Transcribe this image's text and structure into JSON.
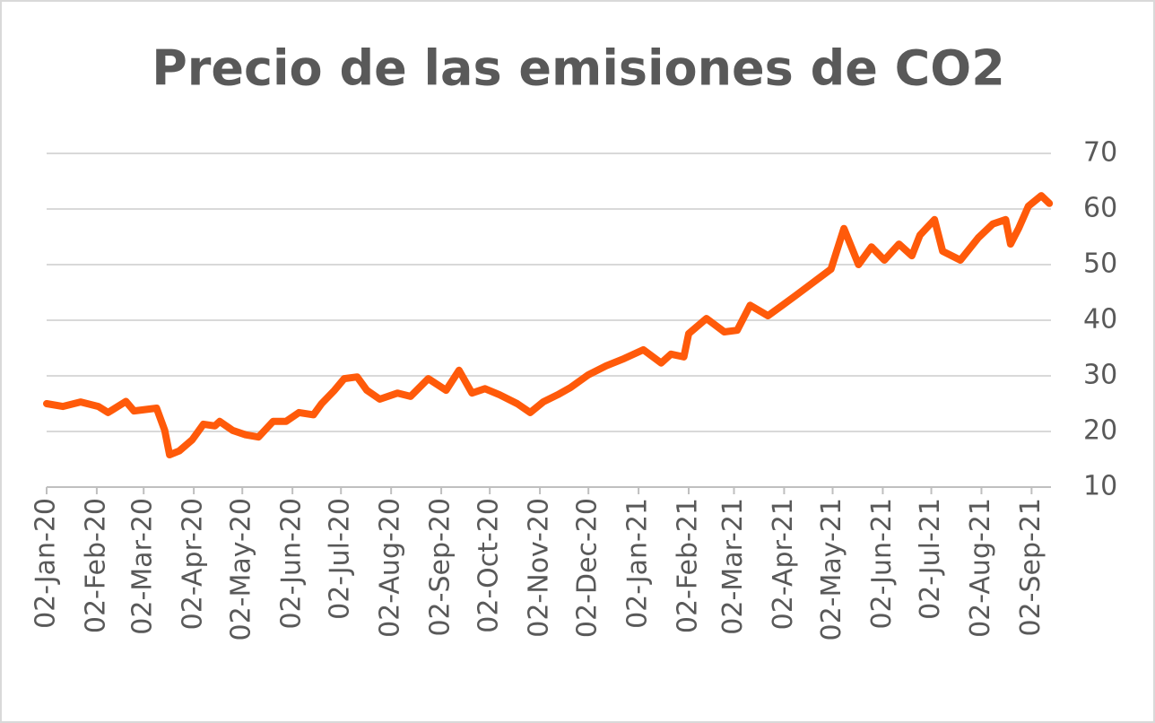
{
  "chart_data": {
    "type": "line",
    "title": "Precio de las emisiones de CO2",
    "x": [
      "2020-01-02",
      "2020-01-12",
      "2020-01-23",
      "2020-02-03",
      "2020-02-09",
      "2020-02-20",
      "2020-02-25",
      "2020-03-10",
      "2020-03-15",
      "2020-03-18",
      "2020-03-24",
      "2020-04-01",
      "2020-04-08",
      "2020-04-15",
      "2020-04-18",
      "2020-04-26",
      "2020-05-04",
      "2020-05-12",
      "2020-05-21",
      "2020-05-29",
      "2020-06-06",
      "2020-06-15",
      "2020-06-20",
      "2020-06-28",
      "2020-07-04",
      "2020-07-12",
      "2020-07-18",
      "2020-07-26",
      "2020-08-06",
      "2020-08-14",
      "2020-08-25",
      "2020-09-05",
      "2020-09-13",
      "2020-09-21",
      "2020-09-29",
      "2020-10-08",
      "2020-10-19",
      "2020-10-27",
      "2020-11-04",
      "2020-11-13",
      "2020-11-21",
      "2020-12-02",
      "2020-12-13",
      "2020-12-24",
      "2021-01-05",
      "2021-01-16",
      "2021-01-22",
      "2021-01-30",
      "2021-02-02",
      "2021-02-13",
      "2021-02-24",
      "2021-03-04",
      "2021-03-12",
      "2021-03-23",
      "2021-04-01",
      "2021-04-09",
      "2021-04-20",
      "2021-05-01",
      "2021-05-09",
      "2021-05-18",
      "2021-05-26",
      "2021-06-03",
      "2021-06-12",
      "2021-06-20",
      "2021-06-25",
      "2021-07-04",
      "2021-07-09",
      "2021-07-20",
      "2021-07-31",
      "2021-08-09",
      "2021-08-17",
      "2021-08-20",
      "2021-08-25",
      "2021-08-31",
      "2021-09-08",
      "2021-09-13"
    ],
    "series": [
      {
        "name": "CO2",
        "color": "#ff5a0a",
        "values": [
          25,
          24.5,
          25.3,
          24.5,
          23.4,
          25.4,
          23.7,
          24.2,
          20.2,
          15.8,
          16.5,
          18.5,
          21.3,
          21,
          21.8,
          20.2,
          19.4,
          19,
          21.8,
          21.8,
          23.4,
          23,
          25,
          27.4,
          29.5,
          29.8,
          27.4,
          25.8,
          26.9,
          26.3,
          29.5,
          27.4,
          31,
          26.9,
          27.7,
          26.6,
          25,
          23.4,
          25.3,
          26.6,
          27.9,
          30.2,
          31.8,
          33.1,
          34.7,
          32.3,
          33.9,
          33.4,
          37.6,
          40.3,
          37.9,
          38.2,
          42.7,
          40.8,
          42.7,
          44.4,
          46.8,
          49.2,
          56.5,
          50,
          53.2,
          50.8,
          53.7,
          51.6,
          55.3,
          58.1,
          52.4,
          50.8,
          54.8,
          57.3,
          58.1,
          53.7,
          56.5,
          60.5,
          62.4,
          61
        ]
      }
    ],
    "xlim": [
      "2020-01-02",
      "2021-09-14"
    ],
    "xticks": [
      {
        "value": "2020-01-02",
        "label": "02-Jan-20"
      },
      {
        "value": "2020-02-02",
        "label": "02-Feb-20"
      },
      {
        "value": "2020-03-02",
        "label": "02-Mar-20"
      },
      {
        "value": "2020-04-02",
        "label": "02-Apr-20"
      },
      {
        "value": "2020-05-02",
        "label": "02-May-20"
      },
      {
        "value": "2020-06-02",
        "label": "02-Jun-20"
      },
      {
        "value": "2020-07-02",
        "label": "02-Jul-20"
      },
      {
        "value": "2020-08-02",
        "label": "02-Aug-20"
      },
      {
        "value": "2020-09-02",
        "label": "02-Sep-20"
      },
      {
        "value": "2020-10-02",
        "label": "02-Oct-20"
      },
      {
        "value": "2020-11-02",
        "label": "02-Nov-20"
      },
      {
        "value": "2020-12-02",
        "label": "02-Dec-20"
      },
      {
        "value": "2021-01-02",
        "label": "02-Jan-21"
      },
      {
        "value": "2021-02-02",
        "label": "02-Feb-21"
      },
      {
        "value": "2021-03-02",
        "label": "02-Mar-21"
      },
      {
        "value": "2021-04-02",
        "label": "02-Apr-21"
      },
      {
        "value": "2021-05-02",
        "label": "02-May-21"
      },
      {
        "value": "2021-06-02",
        "label": "02-Jun-21"
      },
      {
        "value": "2021-07-02",
        "label": "02-Jul-21"
      },
      {
        "value": "2021-08-02",
        "label": "02-Aug-21"
      },
      {
        "value": "2021-09-02",
        "label": "02-Sep-21"
      }
    ],
    "ylim": [
      10,
      70
    ],
    "yticks": [
      10,
      20,
      30,
      40,
      50,
      60,
      70
    ],
    "grid": true
  }
}
